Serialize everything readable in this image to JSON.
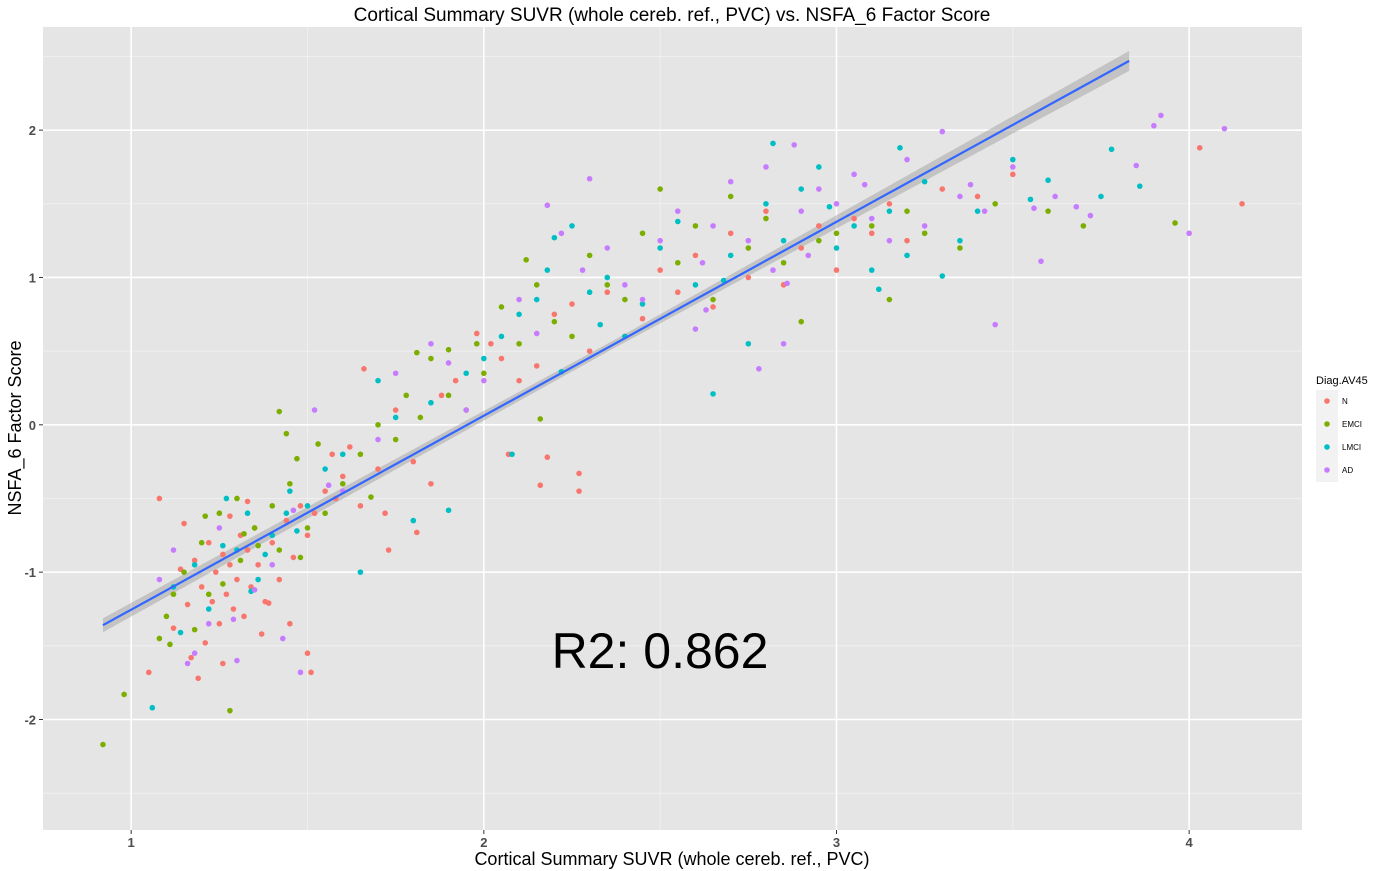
{
  "chart_data": {
    "type": "scatter",
    "title": "Cortical Summary SUVR (whole cereb. ref., PVC) vs. NSFA_6 Factor Score",
    "xlabel": "Cortical Summary SUVR (whole cereb. ref., PVC)",
    "ylabel": "NSFA_6 Factor Score",
    "xlim": [
      0.75,
      4.32
    ],
    "ylim": [
      -2.75,
      2.7
    ],
    "xticks": [
      1,
      2,
      3,
      4
    ],
    "yticks": [
      -2,
      -1,
      0,
      1,
      2
    ],
    "grid": true,
    "legend_position": "right",
    "legend_title": "Diag.AV45",
    "annotation": "R2: 0.862",
    "fit_line": {
      "x": [
        0.92,
        3.83
      ],
      "y": [
        -1.36,
        2.47
      ]
    },
    "series": [
      {
        "name": "N",
        "color": "#F8766D",
        "points": [
          [
            1.15,
            -0.67
          ],
          [
            1.18,
            -0.92
          ],
          [
            1.2,
            -1.1
          ],
          [
            1.22,
            -0.8
          ],
          [
            1.23,
            -1.2
          ],
          [
            1.24,
            -1.0
          ],
          [
            1.25,
            -1.35
          ],
          [
            1.26,
            -0.88
          ],
          [
            1.27,
            -1.15
          ],
          [
            1.28,
            -0.95
          ],
          [
            1.29,
            -1.25
          ],
          [
            1.3,
            -1.05
          ],
          [
            1.31,
            -0.75
          ],
          [
            1.32,
            -1.3
          ],
          [
            1.33,
            -0.85
          ],
          [
            1.34,
            -1.1
          ],
          [
            1.35,
            -0.7
          ],
          [
            1.36,
            -0.95
          ],
          [
            1.38,
            -1.2
          ],
          [
            1.4,
            -0.8
          ],
          [
            1.42,
            -1.05
          ],
          [
            1.44,
            -0.65
          ],
          [
            1.46,
            -0.9
          ],
          [
            1.48,
            -0.55
          ],
          [
            1.5,
            -0.75
          ],
          [
            1.52,
            -0.6
          ],
          [
            1.55,
            -0.45
          ],
          [
            1.58,
            -0.5
          ],
          [
            1.6,
            -0.35
          ],
          [
            1.65,
            -0.55
          ],
          [
            1.7,
            -0.3
          ],
          [
            1.08,
            -0.5
          ],
          [
            1.05,
            -1.68
          ],
          [
            1.12,
            -1.38
          ],
          [
            1.17,
            -1.58
          ],
          [
            1.19,
            -1.72
          ],
          [
            1.21,
            -1.48
          ],
          [
            1.14,
            -0.98
          ],
          [
            1.16,
            -1.22
          ],
          [
            1.26,
            -1.62
          ],
          [
            1.28,
            -0.62
          ],
          [
            1.33,
            -0.52
          ],
          [
            1.37,
            -1.42
          ],
          [
            1.45,
            -1.35
          ],
          [
            1.5,
            -1.55
          ],
          [
            1.51,
            -1.68
          ],
          [
            1.57,
            -0.2
          ],
          [
            1.62,
            -0.15
          ],
          [
            1.66,
            0.38
          ],
          [
            1.72,
            -0.6
          ],
          [
            1.75,
            0.1
          ],
          [
            1.8,
            -0.25
          ],
          [
            1.85,
            -0.4
          ],
          [
            1.88,
            0.2
          ],
          [
            1.92,
            0.3
          ],
          [
            1.98,
            0.62
          ],
          [
            2.02,
            0.55
          ],
          [
            2.05,
            0.45
          ],
          [
            2.1,
            0.3
          ],
          [
            2.15,
            0.4
          ],
          [
            2.18,
            -0.22
          ],
          [
            2.2,
            0.75
          ],
          [
            2.25,
            0.82
          ],
          [
            2.27,
            -0.45
          ],
          [
            2.3,
            0.5
          ],
          [
            2.35,
            0.9
          ],
          [
            2.4,
            0.6
          ],
          [
            2.45,
            0.72
          ],
          [
            2.5,
            1.05
          ],
          [
            2.55,
            0.9
          ],
          [
            2.6,
            1.15
          ],
          [
            2.65,
            0.8
          ],
          [
            2.7,
            1.3
          ],
          [
            2.75,
            1.0
          ],
          [
            2.8,
            1.45
          ],
          [
            2.85,
            0.95
          ],
          [
            2.9,
            1.2
          ],
          [
            2.95,
            1.35
          ],
          [
            3.0,
            1.05
          ],
          [
            3.05,
            1.4
          ],
          [
            3.1,
            1.3
          ],
          [
            3.15,
            1.5
          ],
          [
            3.2,
            1.25
          ],
          [
            3.3,
            1.6
          ],
          [
            3.4,
            1.55
          ],
          [
            3.5,
            1.7
          ],
          [
            4.03,
            1.88
          ],
          [
            4.15,
            1.5
          ],
          [
            2.07,
            -0.2
          ],
          [
            2.16,
            -0.41
          ],
          [
            2.27,
            -0.33
          ],
          [
            1.73,
            -0.85
          ],
          [
            1.81,
            -0.73
          ],
          [
            1.39,
            -1.21
          ]
        ]
      },
      {
        "name": "EMCI",
        "color": "#7CAE00",
        "points": [
          [
            0.92,
            -2.17
          ],
          [
            0.98,
            -1.83
          ],
          [
            1.08,
            -1.45
          ],
          [
            1.1,
            -1.3
          ],
          [
            1.12,
            -1.15
          ],
          [
            1.15,
            -1.0
          ],
          [
            1.2,
            -0.8
          ],
          [
            1.25,
            -0.6
          ],
          [
            1.3,
            -0.5
          ],
          [
            1.35,
            -0.7
          ],
          [
            1.4,
            -0.55
          ],
          [
            1.42,
            -0.85
          ],
          [
            1.45,
            -0.4
          ],
          [
            1.48,
            -0.9
          ],
          [
            1.5,
            -0.7
          ],
          [
            1.55,
            -0.6
          ],
          [
            1.6,
            -0.4
          ],
          [
            1.65,
            -0.2
          ],
          [
            1.7,
            0.0
          ],
          [
            1.75,
            -0.1
          ],
          [
            1.78,
            0.2
          ],
          [
            1.82,
            0.05
          ],
          [
            1.85,
            0.45
          ],
          [
            1.9,
            0.2
          ],
          [
            1.95,
            0.1
          ],
          [
            1.98,
            0.55
          ],
          [
            2.0,
            0.35
          ],
          [
            2.05,
            0.8
          ],
          [
            2.1,
            0.55
          ],
          [
            2.12,
            1.12
          ],
          [
            2.15,
            0.95
          ],
          [
            2.2,
            0.7
          ],
          [
            2.25,
            0.6
          ],
          [
            2.3,
            1.15
          ],
          [
            2.35,
            0.95
          ],
          [
            2.4,
            0.85
          ],
          [
            2.45,
            1.3
          ],
          [
            2.5,
            1.6
          ],
          [
            2.55,
            1.1
          ],
          [
            2.6,
            1.35
          ],
          [
            2.65,
            0.85
          ],
          [
            2.7,
            1.55
          ],
          [
            2.75,
            1.2
          ],
          [
            2.8,
            1.4
          ],
          [
            2.85,
            1.1
          ],
          [
            2.9,
            0.7
          ],
          [
            2.95,
            1.25
          ],
          [
            3.0,
            1.3
          ],
          [
            3.1,
            1.35
          ],
          [
            3.15,
            0.85
          ],
          [
            3.2,
            1.45
          ],
          [
            3.25,
            1.3
          ],
          [
            3.35,
            1.2
          ],
          [
            3.45,
            1.5
          ],
          [
            3.6,
            1.45
          ],
          [
            3.7,
            1.35
          ],
          [
            3.96,
            1.37
          ],
          [
            1.28,
            -1.94
          ],
          [
            1.22,
            -1.15
          ],
          [
            1.42,
            0.09
          ],
          [
            1.44,
            -0.06
          ],
          [
            1.47,
            -0.23
          ],
          [
            1.53,
            -0.13
          ],
          [
            1.68,
            -0.49
          ],
          [
            1.81,
            0.49
          ],
          [
            1.9,
            0.51
          ],
          [
            2.16,
            0.04
          ],
          [
            1.32,
            -0.74
          ],
          [
            1.36,
            -0.82
          ],
          [
            1.18,
            -1.39
          ],
          [
            1.11,
            -1.49
          ],
          [
            1.26,
            -1.08
          ],
          [
            1.21,
            -0.62
          ],
          [
            1.31,
            -0.92
          ]
        ]
      },
      {
        "name": "LMCI",
        "color": "#00BFC4",
        "points": [
          [
            1.06,
            -1.92
          ],
          [
            1.12,
            -1.1
          ],
          [
            1.18,
            -0.95
          ],
          [
            1.22,
            -1.25
          ],
          [
            1.27,
            -0.5
          ],
          [
            1.3,
            -0.85
          ],
          [
            1.33,
            -0.6
          ],
          [
            1.36,
            -1.05
          ],
          [
            1.4,
            -0.75
          ],
          [
            1.45,
            -0.45
          ],
          [
            1.5,
            -0.55
          ],
          [
            1.55,
            -0.3
          ],
          [
            1.6,
            -0.2
          ],
          [
            1.65,
            -1.0
          ],
          [
            1.7,
            0.3
          ],
          [
            1.75,
            0.05
          ],
          [
            1.8,
            -0.65
          ],
          [
            1.85,
            0.15
          ],
          [
            1.9,
            -0.58
          ],
          [
            1.95,
            0.35
          ],
          [
            2.0,
            0.45
          ],
          [
            2.05,
            0.6
          ],
          [
            2.1,
            0.75
          ],
          [
            2.15,
            0.85
          ],
          [
            2.18,
            1.05
          ],
          [
            2.2,
            1.27
          ],
          [
            2.25,
            1.35
          ],
          [
            2.3,
            0.9
          ],
          [
            2.35,
            1.0
          ],
          [
            2.4,
            0.6
          ],
          [
            2.45,
            0.82
          ],
          [
            2.5,
            1.2
          ],
          [
            2.55,
            1.38
          ],
          [
            2.6,
            0.95
          ],
          [
            2.65,
            0.21
          ],
          [
            2.7,
            1.15
          ],
          [
            2.75,
            0.55
          ],
          [
            2.8,
            1.5
          ],
          [
            2.82,
            1.91
          ],
          [
            2.85,
            1.25
          ],
          [
            2.9,
            1.6
          ],
          [
            2.95,
            1.75
          ],
          [
            3.0,
            1.2
          ],
          [
            3.05,
            1.35
          ],
          [
            3.1,
            1.05
          ],
          [
            3.12,
            0.92
          ],
          [
            3.15,
            1.45
          ],
          [
            3.2,
            1.15
          ],
          [
            3.25,
            1.65
          ],
          [
            3.3,
            1.01
          ],
          [
            3.35,
            1.25
          ],
          [
            3.4,
            1.45
          ],
          [
            3.5,
            1.8
          ],
          [
            3.55,
            1.53
          ],
          [
            3.6,
            1.66
          ],
          [
            3.75,
            1.55
          ],
          [
            3.78,
            1.87
          ],
          [
            3.86,
            1.62
          ],
          [
            1.44,
            -0.6
          ],
          [
            1.38,
            -0.88
          ],
          [
            1.47,
            -0.72
          ],
          [
            1.26,
            -0.82
          ],
          [
            1.34,
            -1.13
          ],
          [
            1.14,
            -1.41
          ],
          [
            2.08,
            -0.2
          ],
          [
            2.22,
            0.36
          ],
          [
            2.33,
            0.68
          ],
          [
            2.68,
            0.98
          ],
          [
            2.98,
            1.48
          ],
          [
            3.18,
            1.88
          ]
        ]
      },
      {
        "name": "AD",
        "color": "#C77CFF",
        "points": [
          [
            1.08,
            -1.05
          ],
          [
            1.12,
            -0.85
          ],
          [
            1.18,
            -1.55
          ],
          [
            1.22,
            -1.35
          ],
          [
            1.25,
            -0.7
          ],
          [
            1.3,
            -1.6
          ],
          [
            1.35,
            -1.12
          ],
          [
            1.4,
            -0.95
          ],
          [
            1.48,
            -1.68
          ],
          [
            1.52,
            0.1
          ],
          [
            1.6,
            -0.45
          ],
          [
            1.7,
            -0.1
          ],
          [
            1.75,
            0.35
          ],
          [
            1.85,
            0.55
          ],
          [
            1.9,
            0.42
          ],
          [
            1.95,
            0.1
          ],
          [
            2.0,
            0.3
          ],
          [
            2.1,
            0.85
          ],
          [
            2.15,
            0.62
          ],
          [
            2.18,
            1.49
          ],
          [
            2.22,
            1.3
          ],
          [
            2.28,
            1.05
          ],
          [
            2.3,
            1.67
          ],
          [
            2.35,
            1.2
          ],
          [
            2.4,
            0.95
          ],
          [
            2.45,
            0.85
          ],
          [
            2.5,
            1.25
          ],
          [
            2.55,
            1.45
          ],
          [
            2.6,
            0.65
          ],
          [
            2.62,
            1.1
          ],
          [
            2.65,
            1.35
          ],
          [
            2.7,
            1.65
          ],
          [
            2.75,
            1.25
          ],
          [
            2.78,
            0.38
          ],
          [
            2.8,
            1.75
          ],
          [
            2.82,
            1.05
          ],
          [
            2.85,
            0.55
          ],
          [
            2.88,
            1.9
          ],
          [
            2.9,
            1.45
          ],
          [
            2.92,
            1.15
          ],
          [
            2.95,
            1.6
          ],
          [
            3.0,
            1.5
          ],
          [
            3.05,
            1.7
          ],
          [
            3.1,
            1.4
          ],
          [
            3.15,
            1.25
          ],
          [
            3.2,
            1.8
          ],
          [
            3.25,
            1.35
          ],
          [
            3.3,
            1.99
          ],
          [
            3.35,
            1.55
          ],
          [
            3.42,
            1.45
          ],
          [
            3.45,
            0.68
          ],
          [
            3.5,
            1.75
          ],
          [
            3.58,
            1.11
          ],
          [
            3.62,
            1.55
          ],
          [
            3.68,
            1.48
          ],
          [
            3.72,
            1.42
          ],
          [
            3.85,
            1.76
          ],
          [
            3.9,
            2.03
          ],
          [
            3.92,
            2.1
          ],
          [
            4.0,
            1.3
          ],
          [
            4.1,
            2.01
          ],
          [
            1.46,
            -0.58
          ],
          [
            1.56,
            -0.41
          ],
          [
            1.43,
            -1.45
          ],
          [
            1.29,
            -1.32
          ],
          [
            1.16,
            -1.62
          ],
          [
            2.63,
            0.78
          ],
          [
            2.86,
            0.96
          ],
          [
            3.08,
            1.63
          ],
          [
            3.38,
            1.63
          ],
          [
            3.56,
            1.47
          ]
        ]
      }
    ]
  }
}
